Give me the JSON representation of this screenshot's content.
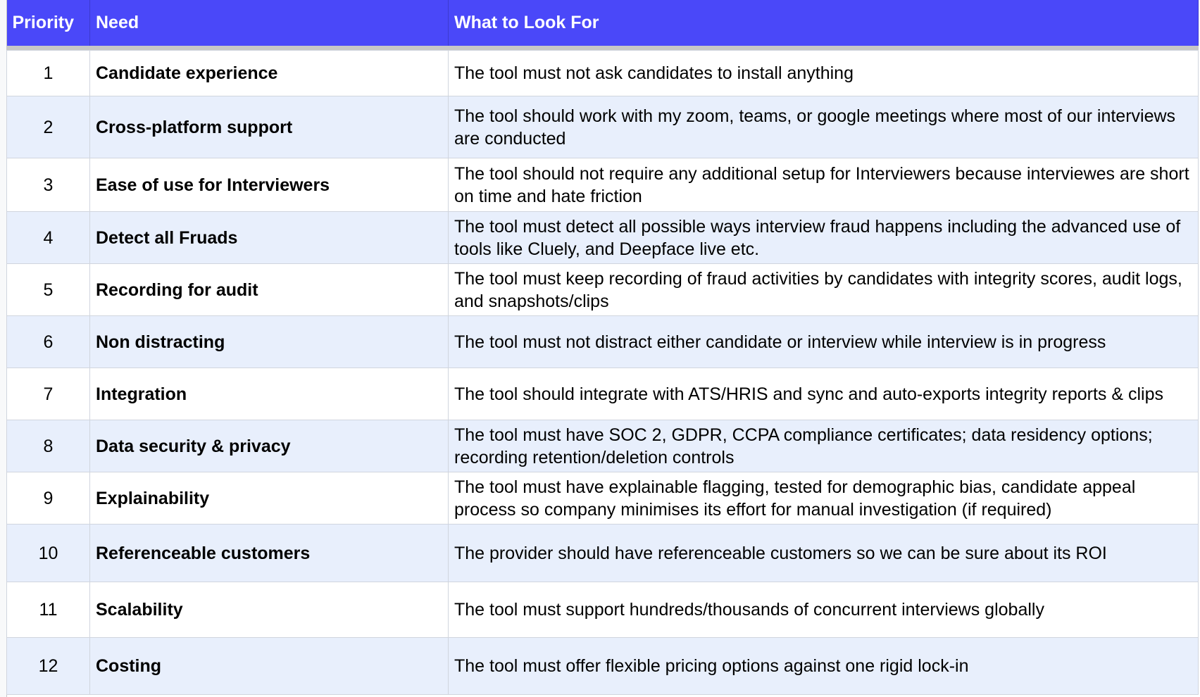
{
  "header": {
    "priority": "Priority",
    "need": "Need",
    "look": "What to Look For"
  },
  "header_color": "#4a48f9",
  "rows": [
    {
      "p": "1",
      "need": "Candidate experience",
      "look": "The tool must not ask candidates to install anything"
    },
    {
      "p": "2",
      "need": "Cross-platform support",
      "look": "The tool should work with my zoom, teams, or google meetings where most of our interviews are conducted"
    },
    {
      "p": "3",
      "need": "Ease of use for Interviewers",
      "look": "The tool should not require any additional setup for Interviewers because interviewes are short on time and hate friction"
    },
    {
      "p": "4",
      "need": "Detect all Fruads",
      "look": "The tool must detect all possible ways interview fraud happens including the advanced use of tools like Cluely, and Deepface live etc."
    },
    {
      "p": "5",
      "need": "Recording for audit",
      "look": "The tool must keep recording of fraud activities by candidates with integrity scores, audit logs, and snapshots/clips"
    },
    {
      "p": "6",
      "need": "Non distracting",
      "look": "The tool must not distract either candidate or interview while interview is in progress"
    },
    {
      "p": "7",
      "need": "Integration",
      "look": "The tool should integrate with ATS/HRIS and sync and auto-exports integrity reports & clips"
    },
    {
      "p": "8",
      "need": "Data security & privacy",
      "look": "The tool must have SOC 2, GDPR, CCPA compliance certificates; data residency options; recording retention/deletion controls"
    },
    {
      "p": "9",
      "need": "Explainability",
      "look": "The tool must have explainable flagging, tested for demographic bias, candidate appeal process so company minimises its effort for manual investigation (if required)"
    },
    {
      "p": "10",
      "need": "Referenceable customers",
      "look": "The provider should have referenceable customers so we can be sure about its ROI"
    },
    {
      "p": "11",
      "need": "Scalability",
      "look": "The tool must support hundreds/thousands of concurrent interviews globally"
    },
    {
      "p": "12",
      "need": "Costing",
      "look": "The tool must offer flexible pricing options against one rigid lock-in"
    }
  ]
}
